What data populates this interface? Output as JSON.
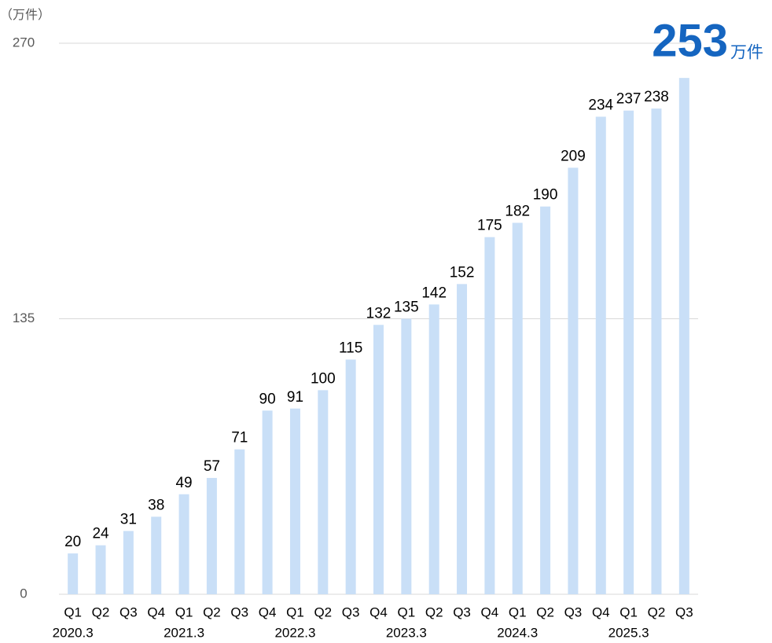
{
  "chart_data": {
    "type": "bar",
    "y_unit": "（万件）",
    "highlight_unit": "万件",
    "categories": [
      "Q1",
      "Q2",
      "Q3",
      "Q4",
      "Q1",
      "Q2",
      "Q3",
      "Q4",
      "Q1",
      "Q2",
      "Q3",
      "Q4",
      "Q1",
      "Q2",
      "Q3",
      "Q4",
      "Q1",
      "Q2",
      "Q3",
      "Q4",
      "Q1",
      "Q2",
      "Q3"
    ],
    "group_labels": [
      "2020.3",
      null,
      null,
      null,
      "2021.3",
      null,
      null,
      null,
      "2022.3",
      null,
      null,
      null,
      "2023.3",
      null,
      null,
      null,
      "2024.3",
      null,
      null,
      null,
      "2025.3",
      null,
      null
    ],
    "values": [
      20,
      24,
      31,
      38,
      49,
      57,
      71,
      90,
      91,
      100,
      115,
      132,
      135,
      142,
      152,
      175,
      182,
      190,
      209,
      234,
      237,
      238,
      253
    ],
    "color": "#c9dff7",
    "highlight_color": "#1565c0",
    "ylim": [
      0,
      270
    ],
    "yticks": [
      0,
      135,
      270
    ],
    "grid": true
  }
}
